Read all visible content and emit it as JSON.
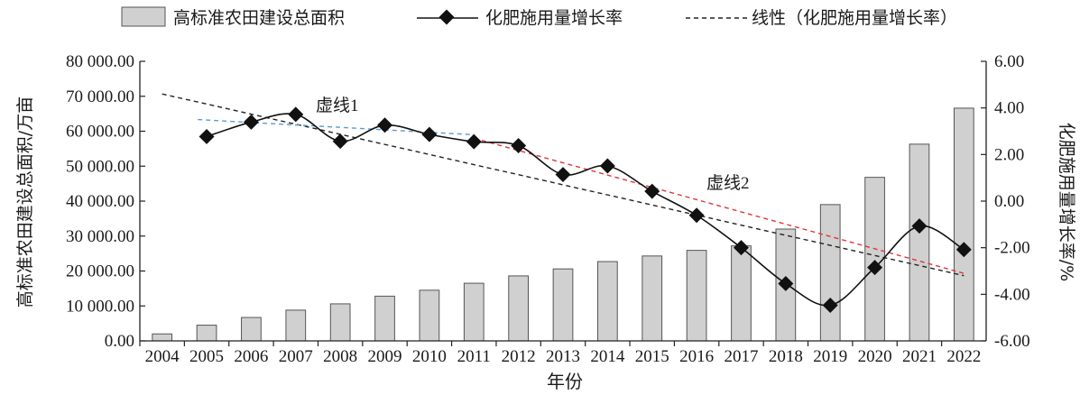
{
  "chart_data": {
    "type": "bar",
    "categories": [
      "2004",
      "2005",
      "2006",
      "2007",
      "2008",
      "2009",
      "2010",
      "2011",
      "2012",
      "2013",
      "2014",
      "2015",
      "2016",
      "2017",
      "2018",
      "2019",
      "2020",
      "2021",
      "2022"
    ],
    "xlabel": "年份",
    "ylabel_left": "高标准农田建设总面积/万亩",
    "ylabel_right": "化肥施用量增长率/%",
    "ylim_left": [
      0,
      80000
    ],
    "ylim_right": [
      -6,
      6
    ],
    "yticks_left": [
      "0.00",
      "10 000.00",
      "20 000.00",
      "30 000.00",
      "40 000.00",
      "50 000.00",
      "60 000.00",
      "70 000.00",
      "80 000.00"
    ],
    "yticks_right": [
      "-6.00",
      "-4.00",
      "-2.00",
      "0.00",
      "2.00",
      "4.00",
      "6.00"
    ],
    "legend_position": "top",
    "series": [
      {
        "name": "高标准农田建设总面积",
        "type": "bar",
        "axis": "left",
        "color": "#d0d0d0",
        "values": [
          2000,
          4500,
          6700,
          8800,
          10600,
          12800,
          14500,
          16500,
          18600,
          20600,
          22700,
          24300,
          25900,
          27200,
          32000,
          39000,
          46800,
          56300,
          66600
        ]
      },
      {
        "name": "化肥施用量增长率",
        "type": "line",
        "axis": "right",
        "marker": "diamond",
        "color": "#111111",
        "x": [
          "2005",
          "2006",
          "2007",
          "2008",
          "2009",
          "2010",
          "2011",
          "2012",
          "2013",
          "2014",
          "2015",
          "2016",
          "2017",
          "2018",
          "2019",
          "2020",
          "2021",
          "2022"
        ],
        "values": [
          2.77,
          3.39,
          3.72,
          2.57,
          3.26,
          2.86,
          2.55,
          2.38,
          1.14,
          1.51,
          0.42,
          -0.61,
          -2.0,
          -3.54,
          -4.47,
          -2.85,
          -1.07,
          -2.08
        ]
      },
      {
        "name": "线性（化肥施用量增长率）",
        "type": "trendline",
        "axis": "right",
        "color": "#222222",
        "x": [
          "2004",
          "2022"
        ],
        "values": [
          4.6,
          -3.2
        ]
      }
    ],
    "annotations": [
      {
        "label": "虚线1",
        "color": "#5b9bd5",
        "x": [
          "2004.8",
          "2011"
        ],
        "values": [
          3.5,
          2.85
        ]
      },
      {
        "label": "虚线2",
        "color": "#e0353b",
        "x": [
          "2011",
          "2022"
        ],
        "values": [
          2.7,
          -3.1
        ]
      }
    ]
  }
}
